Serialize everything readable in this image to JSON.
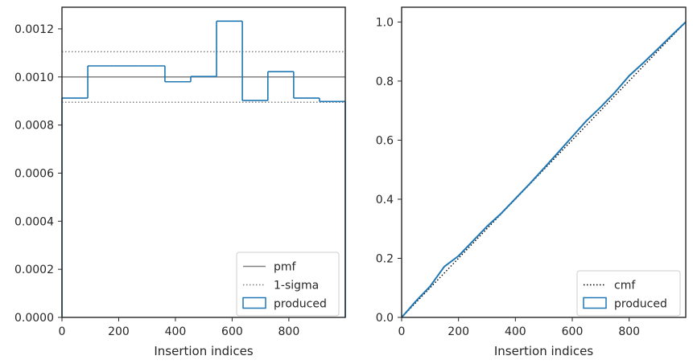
{
  "chart_data": [
    {
      "type": "step",
      "xlabel": "Insertion indices",
      "ylabel": "",
      "xlim": [
        0,
        999
      ],
      "ylim": [
        0,
        0.00129
      ],
      "xticks": [
        0,
        200,
        400,
        600,
        800
      ],
      "xtick_labels": [
        "0",
        "200",
        "400",
        "600",
        "800"
      ],
      "yticks": [
        0,
        0.0002,
        0.0004,
        0.0006,
        0.0008,
        0.001,
        0.0012
      ],
      "ytick_labels": [
        "0.0000",
        "0.0002",
        "0.0004",
        "0.0006",
        "0.0008",
        "0.0010",
        "0.0012"
      ],
      "pmf": 0.001,
      "sigma_band": [
        0.000895,
        0.001105
      ],
      "histogram": {
        "edges": [
          0,
          91,
          182,
          272,
          363,
          454,
          545,
          636,
          726,
          817,
          908,
          999
        ],
        "values": [
          0.000912,
          0.001046,
          0.001046,
          0.001046,
          0.00098,
          0.001002,
          0.001232,
          0.000902,
          0.001022,
          0.000912,
          0.000898
        ]
      },
      "legend": {
        "position": "lower right",
        "entries": [
          {
            "label": "pmf",
            "style": "solid",
            "color": "#808080"
          },
          {
            "label": "1-sigma",
            "style": "dotted",
            "color": "#808080"
          },
          {
            "label": "produced",
            "style": "box",
            "color": "#1f77b4"
          }
        ]
      }
    },
    {
      "type": "line",
      "xlabel": "Insertion indices",
      "ylabel": "",
      "xlim": [
        0,
        999
      ],
      "ylim": [
        0,
        1.05
      ],
      "xticks": [
        0,
        200,
        400,
        600,
        800
      ],
      "xtick_labels": [
        "0",
        "200",
        "400",
        "600",
        "800"
      ],
      "yticks": [
        0,
        0.2,
        0.4,
        0.6,
        0.8,
        1.0
      ],
      "ytick_labels": [
        "0.0",
        "0.2",
        "0.4",
        "0.6",
        "0.8",
        "1.0"
      ],
      "cmf": {
        "x": [
          0,
          999
        ],
        "y": [
          0,
          1.0
        ]
      },
      "produced": {
        "x": [
          0,
          50,
          100,
          150,
          200,
          250,
          300,
          350,
          400,
          450,
          500,
          550,
          600,
          650,
          700,
          750,
          800,
          850,
          900,
          950,
          999
        ],
        "y": [
          0,
          0.055,
          0.105,
          0.172,
          0.208,
          0.258,
          0.308,
          0.352,
          0.402,
          0.452,
          0.505,
          0.558,
          0.612,
          0.666,
          0.712,
          0.762,
          0.818,
          0.862,
          0.908,
          0.955,
          1.0
        ]
      },
      "legend": {
        "position": "lower right",
        "entries": [
          {
            "label": "cmf",
            "style": "dotted",
            "color": "#000000"
          },
          {
            "label": "produced",
            "style": "box",
            "color": "#1f77b4"
          }
        ]
      }
    }
  ],
  "colors": {
    "produced": "#1f77b4",
    "reference": "#808080",
    "cmf": "#000000",
    "axes": "#262626",
    "background": "#ffffff"
  }
}
